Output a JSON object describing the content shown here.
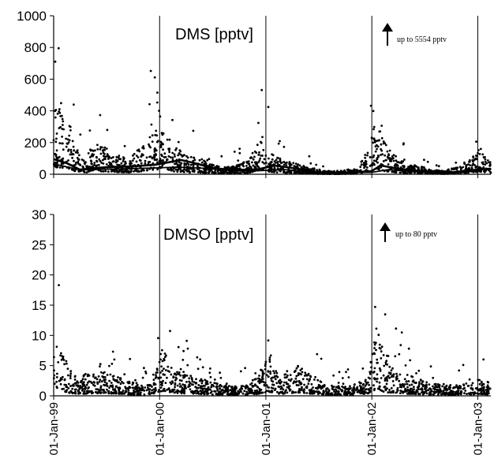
{
  "chart_data": [
    {
      "type": "scatter",
      "title": "DMS [pptv]",
      "xlabel": "",
      "ylabel": "",
      "ylim": [
        0,
        1000
      ],
      "yticks": [
        "0",
        "200",
        "400",
        "600",
        "800",
        "1000"
      ],
      "xlim": [
        "1999-01-01",
        "2003-02-15"
      ],
      "xticks": [
        "01-Jan-99",
        "01-Jan-00",
        "01-Jan-01",
        "01-Jan-02",
        "01-Jan-03"
      ],
      "annotation": "up to 5554 pptv",
      "grid": "vertical lines at year boundaries",
      "series": [
        {
          "kind": "points",
          "envelope": [
            {
              "date": "1999-01-05",
              "value": 300
            },
            {
              "date": "1999-02-15",
              "value": 260
            },
            {
              "date": "1999-03-20",
              "value": 110
            },
            {
              "date": "1999-04-15",
              "value": 60
            },
            {
              "date": "1999-05-20",
              "value": 130
            },
            {
              "date": "1999-07-01",
              "value": 110
            },
            {
              "date": "1999-08-10",
              "value": 80
            },
            {
              "date": "1999-09-20",
              "value": 70
            },
            {
              "date": "1999-11-01",
              "value": 120
            },
            {
              "date": "1999-12-10",
              "value": 180
            },
            {
              "date": "2000-01-10",
              "value": 190
            },
            {
              "date": "2000-02-20",
              "value": 120
            },
            {
              "date": "2000-04-01",
              "value": 80
            },
            {
              "date": "2000-05-15",
              "value": 70
            },
            {
              "date": "2000-07-01",
              "value": 40
            },
            {
              "date": "2000-09-01",
              "value": 30
            },
            {
              "date": "2000-11-01",
              "value": 60
            },
            {
              "date": "2000-12-15",
              "value": 150
            },
            {
              "date": "2001-01-20",
              "value": 100
            },
            {
              "date": "2001-03-01",
              "value": 60
            },
            {
              "date": "2001-05-01",
              "value": 40
            },
            {
              "date": "2001-07-01",
              "value": 20
            },
            {
              "date": "2001-09-01",
              "value": 10
            },
            {
              "date": "2001-11-01",
              "value": 25
            },
            {
              "date": "2001-12-20",
              "value": 100
            },
            {
              "date": "2002-01-15",
              "value": 250
            },
            {
              "date": "2002-02-10",
              "value": 140
            },
            {
              "date": "2002-03-20",
              "value": 80
            },
            {
              "date": "2002-05-01",
              "value": 45
            },
            {
              "date": "2002-07-01",
              "value": 30
            },
            {
              "date": "2002-09-01",
              "value": 15
            },
            {
              "date": "2002-11-01",
              "value": 35
            },
            {
              "date": "2003-01-10",
              "value": 110
            },
            {
              "date": "2003-02-10",
              "value": 60
            }
          ]
        },
        {
          "kind": "line",
          "points": [
            {
              "date": "1999-01-01",
              "value": 95
            },
            {
              "date": "1999-02-15",
              "value": 70
            },
            {
              "date": "1999-04-01",
              "value": 30
            },
            {
              "date": "1999-07-01",
              "value": 45
            },
            {
              "date": "1999-10-01",
              "value": 50
            },
            {
              "date": "1999-12-15",
              "value": 60
            },
            {
              "date": "2000-02-01",
              "value": 75
            },
            {
              "date": "2000-03-15",
              "value": 90
            },
            {
              "date": "2000-05-01",
              "value": 70
            },
            {
              "date": "2000-07-01",
              "value": 40
            },
            {
              "date": "2000-09-01",
              "value": 28
            },
            {
              "date": "2000-12-01",
              "value": 30
            },
            {
              "date": "2001-02-01",
              "value": 55
            },
            {
              "date": "2001-04-01",
              "value": 40
            },
            {
              "date": "2001-07-01",
              "value": 12
            },
            {
              "date": "2001-10-01",
              "value": 8
            },
            {
              "date": "2001-12-31",
              "value": 20
            },
            {
              "date": "2002-02-01",
              "value": 55
            },
            {
              "date": "2002-04-01",
              "value": 35
            },
            {
              "date": "2002-07-01",
              "value": 18
            },
            {
              "date": "2002-10-01",
              "value": 10
            },
            {
              "date": "2003-01-01",
              "value": 30
            },
            {
              "date": "2003-02-15",
              "value": 35
            }
          ]
        },
        {
          "kind": "line",
          "points": [
            {
              "date": "1999-01-01",
              "value": 65
            },
            {
              "date": "1999-04-01",
              "value": 28
            },
            {
              "date": "1999-07-01",
              "value": 32
            },
            {
              "date": "1999-10-01",
              "value": 36
            },
            {
              "date": "1999-12-15",
              "value": 40
            },
            {
              "date": "2000-03-01",
              "value": 45
            },
            {
              "date": "2000-06-01",
              "value": 38
            },
            {
              "date": "2000-09-01",
              "value": 25
            },
            {
              "date": "2000-12-01",
              "value": 22
            },
            {
              "date": "2001-03-01",
              "value": 30
            },
            {
              "date": "2001-07-01",
              "value": 10
            },
            {
              "date": "2001-12-31",
              "value": 12
            },
            {
              "date": "2002-03-01",
              "value": 30
            },
            {
              "date": "2002-07-01",
              "value": 12
            },
            {
              "date": "2003-01-01",
              "value": 18
            }
          ]
        }
      ]
    },
    {
      "type": "scatter",
      "title": "DMSO [pptv]",
      "xlabel": "",
      "ylabel": "",
      "ylim": [
        0,
        30
      ],
      "yticks": [
        "0",
        "5",
        "10",
        "15",
        "20",
        "25",
        "30"
      ],
      "xlim": [
        "1999-01-01",
        "2003-02-15"
      ],
      "xticks": [
        "01-Jan-99",
        "01-Jan-00",
        "01-Jan-01",
        "01-Jan-02",
        "01-Jan-03"
      ],
      "annotation": "up to 80 pptv",
      "grid": "vertical lines at year boundaries",
      "series": [
        {
          "kind": "points",
          "envelope": [
            {
              "date": "1999-01-05",
              "value": 6
            },
            {
              "date": "1999-02-10",
              "value": 4
            },
            {
              "date": "1999-03-20",
              "value": 2
            },
            {
              "date": "1999-05-01",
              "value": 2.5
            },
            {
              "date": "1999-06-15",
              "value": 3
            },
            {
              "date": "1999-08-01",
              "value": 2.2
            },
            {
              "date": "1999-10-01",
              "value": 1.5
            },
            {
              "date": "1999-11-20",
              "value": 1.2
            },
            {
              "date": "1999-12-20",
              "value": 3
            },
            {
              "date": "2000-01-10",
              "value": 5.5
            },
            {
              "date": "2000-02-15",
              "value": 3
            },
            {
              "date": "2000-04-01",
              "value": 2.5
            },
            {
              "date": "2000-06-01",
              "value": 1.8
            },
            {
              "date": "2000-08-01",
              "value": 1.2
            },
            {
              "date": "2000-10-01",
              "value": 1
            },
            {
              "date": "2000-12-01",
              "value": 2
            },
            {
              "date": "2001-01-10",
              "value": 4.5
            },
            {
              "date": "2001-02-20",
              "value": 2
            },
            {
              "date": "2001-04-15",
              "value": 3.5
            },
            {
              "date": "2001-06-01",
              "value": 2.5
            },
            {
              "date": "2001-08-01",
              "value": 1.2
            },
            {
              "date": "2001-10-01",
              "value": 1
            },
            {
              "date": "2001-12-15",
              "value": 2
            },
            {
              "date": "2002-01-20",
              "value": 8
            },
            {
              "date": "2002-02-15",
              "value": 4
            },
            {
              "date": "2002-04-01",
              "value": 2.8
            },
            {
              "date": "2002-06-01",
              "value": 2
            },
            {
              "date": "2002-08-01",
              "value": 1.3
            },
            {
              "date": "2002-10-15",
              "value": 1.2
            },
            {
              "date": "2002-12-15",
              "value": 1.5
            },
            {
              "date": "2003-01-20",
              "value": 2
            },
            {
              "date": "2003-02-10",
              "value": 1.5
            }
          ]
        }
      ]
    }
  ]
}
